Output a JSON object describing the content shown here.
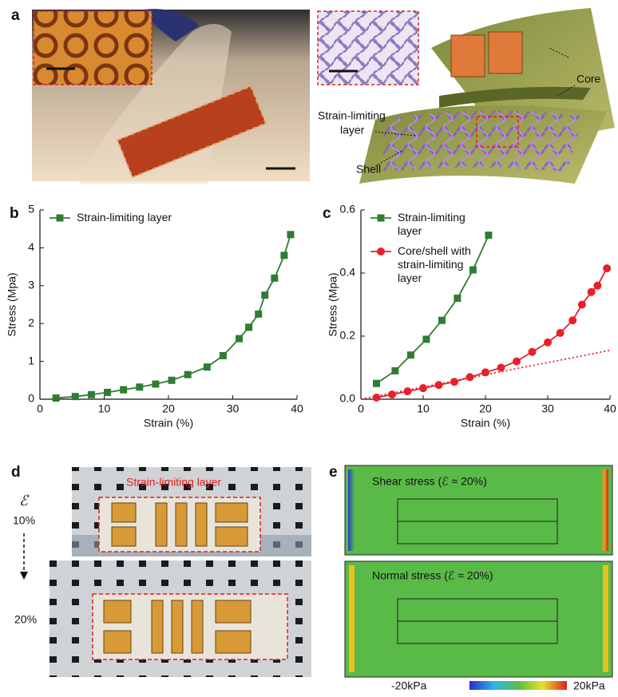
{
  "panel_labels": [
    "a",
    "b",
    "c",
    "d",
    "e"
  ],
  "panel_a": {
    "core": "Core",
    "strain_limiting": [
      "Strain-limiting",
      "layer"
    ],
    "shell": "Shell"
  },
  "panel_d": {
    "strain_limiting": "Strain-limiting layer",
    "strain_symbol": "ℰ",
    "strain_start": "10%",
    "strain_end": "20%"
  },
  "panel_e": {
    "shear": "Shear stress (ℰ ≈ 20%)",
    "normal": "Normal stress (ℰ ≈ 20%)",
    "colorbar_min": "-20kPa",
    "colorbar_max": "20kPa"
  },
  "chart_data": [
    {
      "type": "line",
      "x_label": "Strain (%)",
      "y_label": "Stress (Mpa)",
      "xlim": [
        0,
        40
      ],
      "xticks": [
        0,
        10,
        20,
        30,
        40
      ],
      "ylim": [
        0,
        5
      ],
      "yticks": [
        0,
        1,
        2,
        3,
        4,
        5
      ],
      "legend": "upper left",
      "series": [
        {
          "name": "Strain-limiting layer",
          "color": "#2e7d32",
          "marker": "square",
          "x": [
            2.5,
            5.5,
            8,
            10.5,
            13,
            15.5,
            18,
            20.5,
            23,
            26,
            28.5,
            31,
            32.5,
            34,
            35,
            36.5,
            38,
            39
          ],
          "values": [
            0.03,
            0.07,
            0.12,
            0.18,
            0.25,
            0.32,
            0.4,
            0.5,
            0.65,
            0.85,
            1.15,
            1.6,
            1.9,
            2.25,
            2.75,
            3.2,
            3.8,
            4.35
          ]
        }
      ]
    },
    {
      "type": "line",
      "x_label": "Strain (%)",
      "y_label": "Stress (Mpa)",
      "xlim": [
        0,
        40
      ],
      "xticks": [
        0,
        10,
        20,
        30,
        40
      ],
      "ylim": [
        0,
        0.6
      ],
      "yticks": [
        {
          "value": 0,
          "label": "0.0"
        },
        0.2,
        0.4,
        0.6
      ],
      "legend": "upper left",
      "series": [
        {
          "name": "Strain-limiting layer",
          "color": "#2e7d32",
          "marker": "square",
          "x": [
            2.5,
            5.5,
            8,
            10.5,
            13,
            15.5,
            18,
            20.5
          ],
          "values": [
            0.05,
            0.09,
            0.14,
            0.19,
            0.25,
            0.32,
            0.41,
            0.52
          ]
        },
        {
          "name": "Core/shell with strain-limiting layer",
          "color": "#e8202a",
          "marker": "circle",
          "x": [
            2.5,
            5,
            7.5,
            10,
            12.5,
            15,
            17.5,
            20,
            22.5,
            25,
            27.5,
            30,
            32,
            34,
            35.5,
            37,
            38,
            39.5
          ],
          "values": [
            0.005,
            0.015,
            0.025,
            0.035,
            0.045,
            0.055,
            0.07,
            0.085,
            0.1,
            0.12,
            0.15,
            0.18,
            0.21,
            0.25,
            0.3,
            0.34,
            0.36,
            0.415
          ]
        }
      ],
      "linear_fit": {
        "color": "#e8202a",
        "x": [
          0,
          40
        ],
        "values": [
          0,
          0.155
        ]
      }
    }
  ]
}
